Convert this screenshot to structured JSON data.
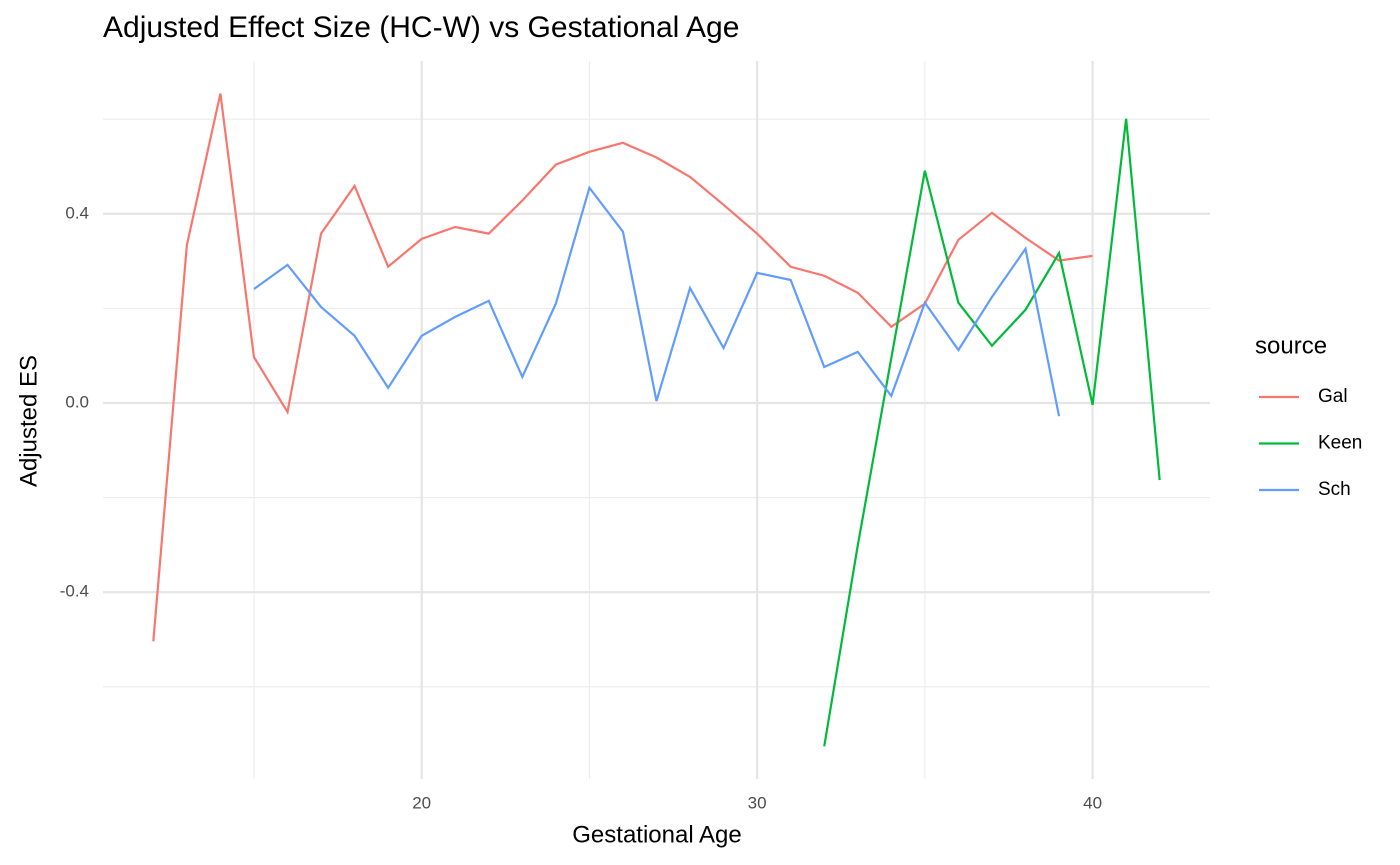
{
  "chart_data": {
    "type": "line",
    "title": "Adjusted Effect Size (HC-W) vs Gestational Age",
    "x_label": "Gestational Age",
    "y_label": "Adjusted ES",
    "legend_title": "source",
    "legend": "right",
    "xlim": [
      10.5,
      43.5
    ],
    "ylim": [
      -0.795,
      0.723
    ],
    "xticks": [
      20,
      30,
      40
    ],
    "yticks": [
      -0.4,
      {
        "value": 0,
        "label": "0.0"
      },
      0.4
    ],
    "x_minor_ticks": [
      15,
      25,
      35
    ],
    "y_minor_ticks": [
      -0.6,
      -0.2,
      0.2,
      0.6
    ],
    "grid": true,
    "series": [
      {
        "name": "Gal",
        "color": "#F8766D",
        "x": [
          12,
          13,
          14,
          15,
          16,
          17,
          18,
          19,
          20,
          21,
          22,
          23,
          24,
          25,
          26,
          27,
          28,
          29,
          30,
          31,
          32,
          33,
          34,
          35,
          36,
          37,
          38,
          39,
          40
        ],
        "values": [
          -0.504,
          0.334,
          0.654,
          0.097,
          -0.019,
          0.358,
          0.459,
          0.288,
          0.347,
          0.372,
          0.358,
          0.428,
          0.504,
          0.531,
          0.55,
          0.519,
          0.478,
          0.419,
          0.358,
          0.288,
          0.269,
          0.233,
          0.161,
          0.21,
          0.345,
          0.402,
          0.349,
          0.301,
          0.311
        ]
      },
      {
        "name": "Keen",
        "color": "#00BA38",
        "x": [
          32,
          33,
          34,
          35,
          36,
          37,
          38,
          39,
          40,
          41,
          42
        ],
        "values": [
          -0.726,
          -0.301,
          0.095,
          0.491,
          0.212,
          0.121,
          0.197,
          0.317,
          -0.004,
          0.601,
          -0.163
        ]
      },
      {
        "name": "Sch",
        "color": "#619CFF",
        "x": [
          15,
          16,
          17,
          18,
          19,
          20,
          21,
          22,
          23,
          24,
          25,
          26,
          27,
          28,
          29,
          30,
          31,
          32,
          33,
          34,
          35,
          36,
          37,
          38,
          39
        ],
        "values": [
          0.241,
          0.292,
          0.203,
          0.142,
          0.032,
          0.142,
          0.182,
          0.216,
          0.055,
          0.21,
          0.455,
          0.362,
          0.004,
          0.243,
          0.116,
          0.275,
          0.26,
          0.076,
          0.108,
          0.015,
          0.212,
          0.112,
          0.224,
          0.326,
          -0.028
        ]
      }
    ]
  }
}
